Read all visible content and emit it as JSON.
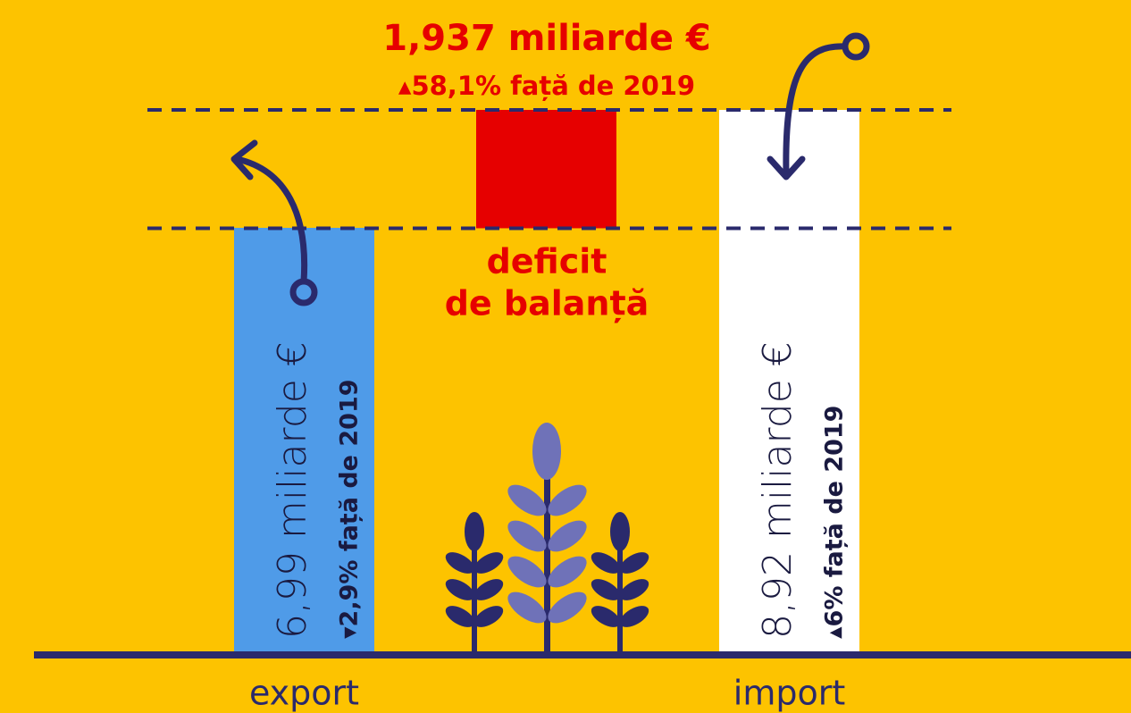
{
  "chart_data": {
    "type": "bar",
    "categories": [
      "export",
      "import"
    ],
    "values": [
      6.99,
      8.92
    ],
    "value_labels": [
      "6,99 miliarde €",
      "8,92 miliarde €"
    ],
    "changes": [
      "▾2,9% față de 2019",
      "▴6% față de 2019"
    ],
    "colors": [
      "#4f9be8",
      "#ffffff"
    ],
    "deficit": {
      "value": 1.937,
      "value_label": "1,937 miliarde €",
      "change": "▴58,1% față de 2019",
      "label": [
        "deficit",
        "de balanță"
      ],
      "color": "#e60000"
    }
  }
}
